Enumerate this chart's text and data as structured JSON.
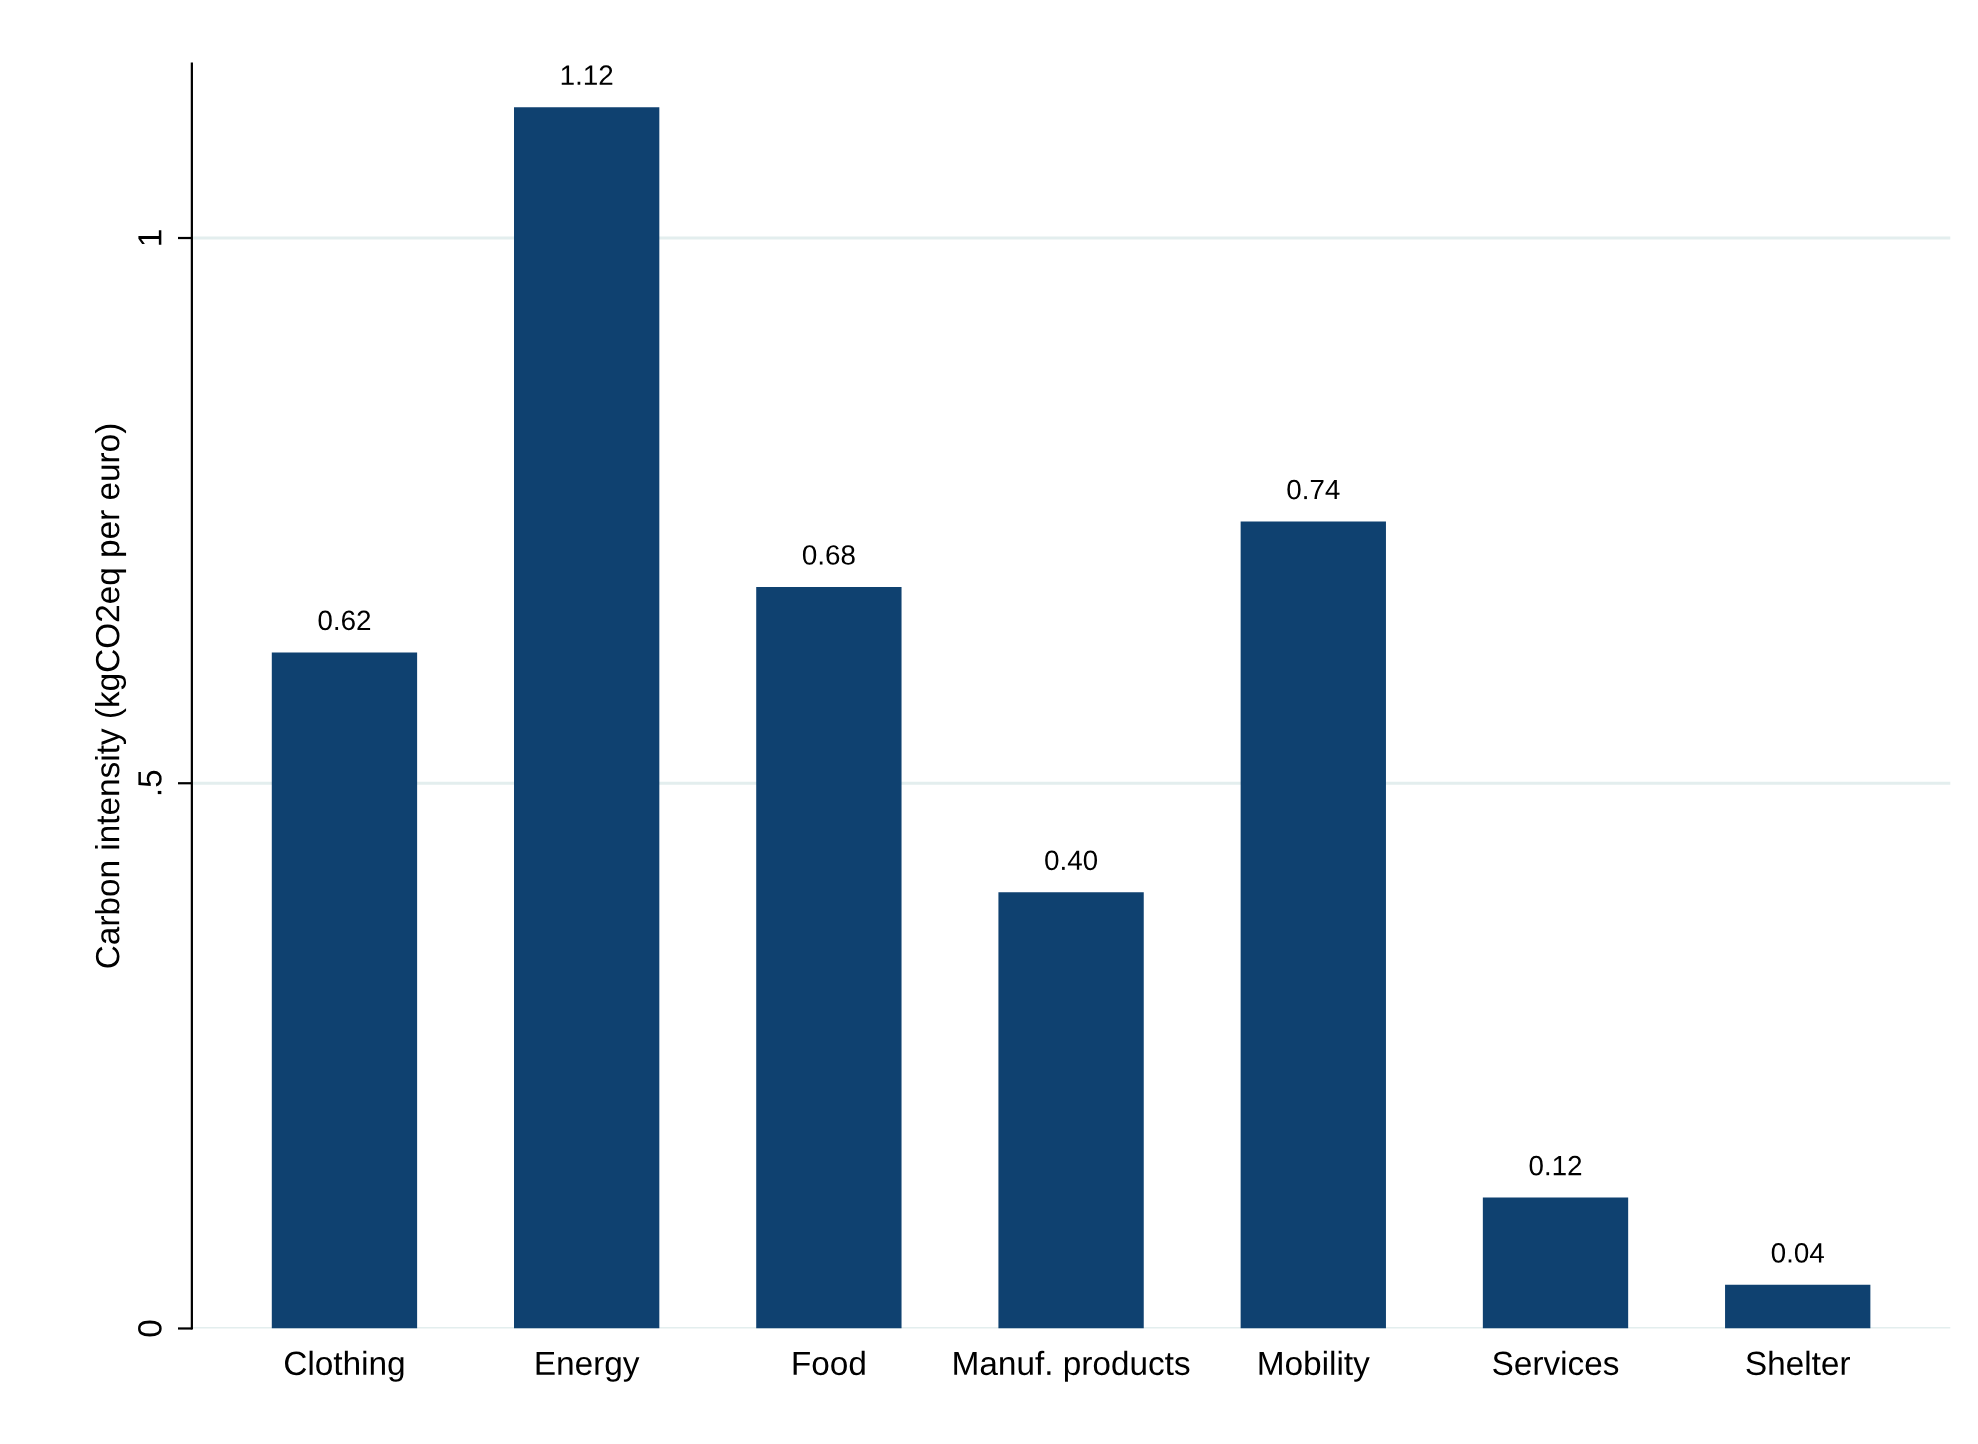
{
  "chart_data": {
    "type": "bar",
    "ylabel": "Carbon intensity (kgCO2eq per euro)",
    "categories": [
      "Clothing",
      "Energy",
      "Food",
      "Manuf. products",
      "Mobility",
      "Services",
      "Shelter"
    ],
    "values": [
      0.62,
      1.12,
      0.68,
      0.4,
      0.74,
      0.12,
      0.04
    ],
    "value_labels": [
      "0.62",
      "1.12",
      "0.68",
      "0.40",
      "0.74",
      "0.12",
      "0.04"
    ],
    "color": "#0f4170",
    "ylim": [
      0,
      1.16
    ],
    "yticks": [
      0,
      {
        "value": 0.5,
        "label": ".5"
      },
      1
    ],
    "grid": "y",
    "legend": false
  }
}
